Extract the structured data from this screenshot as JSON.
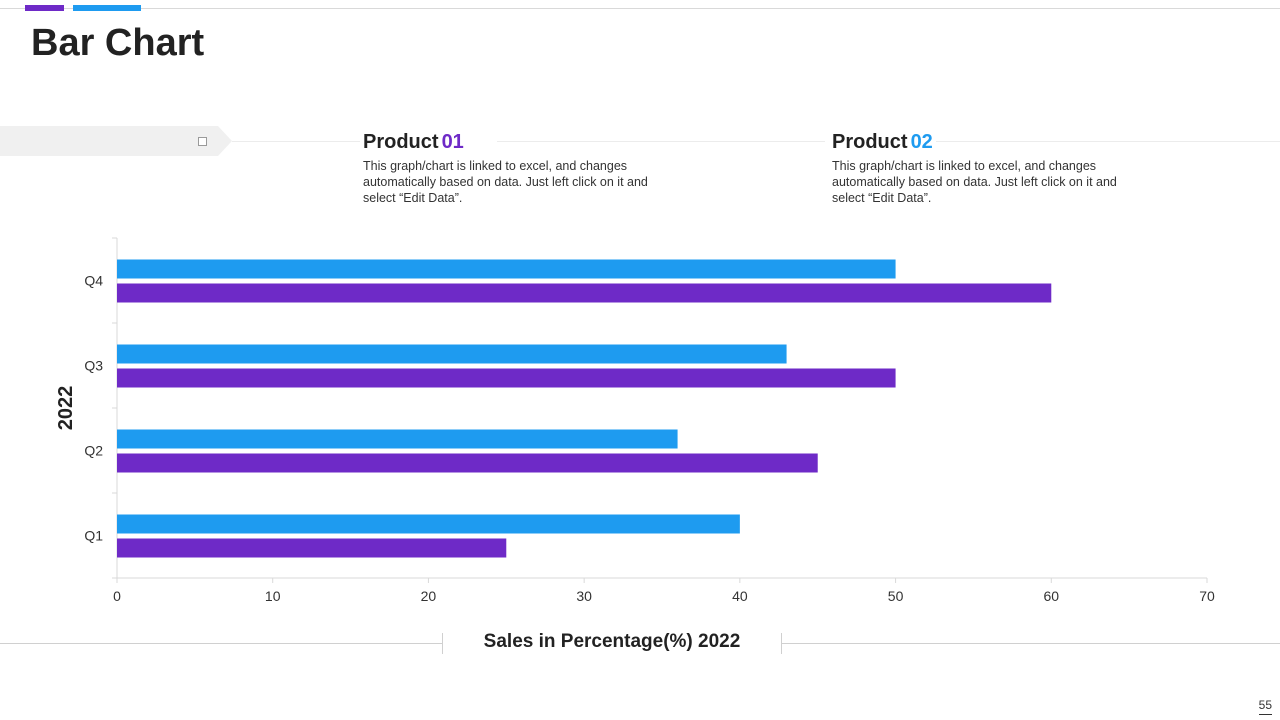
{
  "header": {
    "title": "Bar Chart"
  },
  "products": [
    {
      "label": "Product",
      "number": "01",
      "color": "#6E2AC7",
      "description": "This graph/chart is linked to excel, and changes automatically based on data. Just left click on it and select “Edit Data”."
    },
    {
      "label": "Product",
      "number": "02",
      "color": "#1E9BF0",
      "description": "This graph/chart is linked to excel, and changes automatically based on data. Just left click on it and select “Edit Data”."
    }
  ],
  "chart_data": {
    "type": "bar",
    "orientation": "horizontal",
    "title": "",
    "categories": [
      "Q1",
      "Q2",
      "Q3",
      "Q4"
    ],
    "series": [
      {
        "values": [
          40,
          36,
          43,
          50
        ],
        "color": "#1E9BF0"
      },
      {
        "values": [
          25,
          45,
          50,
          60
        ],
        "color": "#6E2AC7"
      }
    ],
    "xlabel": "Sales in Percentage(%) 2022",
    "ylabel": "2022",
    "xlim": [
      0,
      70
    ],
    "xticks": [
      0,
      10,
      20,
      30,
      40,
      50,
      60,
      70
    ],
    "grid": false,
    "legend": "none"
  },
  "footer": {
    "page_number": "55"
  }
}
